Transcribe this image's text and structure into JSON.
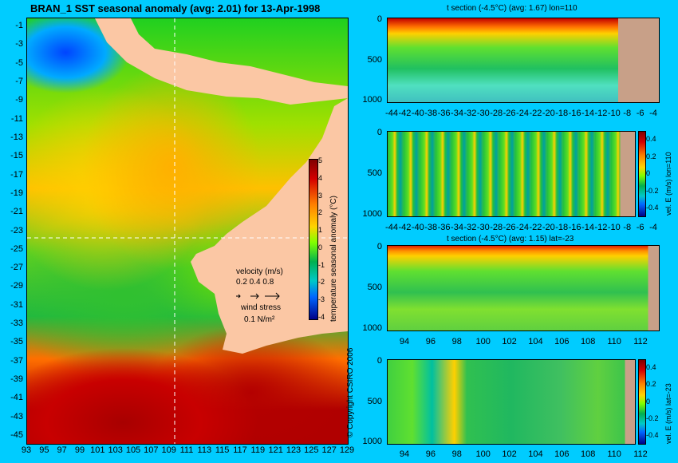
{
  "chart_data": [
    {
      "type": "heatmap",
      "title": "BRAN_1  SST seasonal anomaly  (avg: 2.01)  for 13-Apr-1998",
      "x_ticks": [
        "93",
        "95",
        "97",
        "99",
        "101",
        "103",
        "105",
        "107",
        "109",
        "111",
        "113",
        "115",
        "117",
        "119",
        "121",
        "123",
        "125",
        "127",
        "129"
      ],
      "y_ticks": [
        "-1",
        "-3",
        "-5",
        "-7",
        "-9",
        "-11",
        "-13",
        "-15",
        "-17",
        "-19",
        "-21",
        "-23",
        "-25",
        "-27",
        "-29",
        "-31",
        "-33",
        "-35",
        "-37",
        "-39",
        "-41",
        "-43",
        "-45"
      ],
      "xlim": [
        93,
        130
      ],
      "ylim": [
        -45,
        0
      ],
      "colorbar": {
        "label": "temperature seasonal anomaly (°C)",
        "ticks": [
          "5",
          "4",
          "3",
          "2",
          "1",
          "0",
          "-1",
          "-2",
          "-3",
          "-4"
        ],
        "range": [
          -4,
          5
        ]
      },
      "velocity_legend": {
        "title": "velocity (m/s)",
        "values": "0.2 0.4 0.8"
      },
      "wind_legend": {
        "title": "wind stress",
        "value": "0.1 N/m²"
      },
      "copyright": "© Copyright CSIRO 2006"
    },
    {
      "type": "heatmap",
      "title": "t section (-4.5°C)  (avg: 1.67) lon=110",
      "x_ticks": [
        "-44",
        "-42",
        "-40",
        "-38",
        "-36",
        "-34",
        "-32",
        "-30",
        "-28",
        "-26",
        "-24",
        "-22",
        "-20",
        "-18",
        "-16",
        "-14",
        "-12",
        "-10",
        "-8",
        "-6",
        "-4"
      ],
      "y_ticks": [
        "0",
        "500",
        "1000"
      ]
    },
    {
      "type": "heatmap",
      "title": "",
      "x_ticks": [
        "-44",
        "-42",
        "-40",
        "-38",
        "-36",
        "-34",
        "-32",
        "-30",
        "-28",
        "-26",
        "-24",
        "-22",
        "-20",
        "-18",
        "-16",
        "-14",
        "-12",
        "-10",
        "-8",
        "-6",
        "-4"
      ],
      "y_ticks": [
        "0",
        "500",
        "1000"
      ],
      "colorbar": {
        "label": "vel. E (m/s) lon=110",
        "ticks": [
          "0.4",
          "0.2",
          "0",
          "-0.2",
          "-0.4"
        ]
      }
    },
    {
      "type": "heatmap",
      "title": "t section (-4.5°C)  (avg: 1.15) lat=-23",
      "x_ticks": [
        "94",
        "96",
        "98",
        "100",
        "102",
        "104",
        "106",
        "108",
        "110",
        "112"
      ],
      "y_ticks": [
        "0",
        "500",
        "1000"
      ]
    },
    {
      "type": "heatmap",
      "title": "",
      "x_ticks": [
        "94",
        "96",
        "98",
        "100",
        "102",
        "104",
        "106",
        "108",
        "110",
        "112"
      ],
      "y_ticks": [
        "0",
        "500",
        "1000"
      ],
      "colorbar": {
        "label": "vel. E (m/s) lat=-23",
        "ticks": [
          "0.4",
          "0.2",
          "0",
          "-0.2",
          "-0.4"
        ]
      }
    }
  ]
}
